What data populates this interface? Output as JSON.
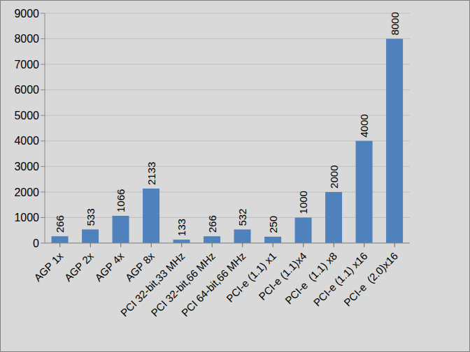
{
  "chart_data": {
    "type": "bar",
    "categories": [
      "AGP 1x",
      "AGP 2x",
      "AGP 4x",
      "AGP 8x",
      "PCI 32-bit,33 MHz",
      "PCI 32-bit,66 MHz",
      "PCI 64-bit,66 MHz",
      "PCI-e (1.1) x1",
      "PCI-e (1.1)x4",
      "PCI-e  (1.1) x8",
      "PCI-e (1.1) x16",
      "PCI-e  (2.0)x16"
    ],
    "values": [
      266,
      533,
      1066,
      2133,
      133,
      266,
      532,
      250,
      1000,
      2000,
      4000,
      8000
    ],
    "color": "#4f81bd",
    "ylim": [
      0,
      9000
    ],
    "yticks": [
      0,
      1000,
      2000,
      3000,
      4000,
      5000,
      6000,
      7000,
      8000,
      9000
    ],
    "grid": true,
    "data_labels": true
  }
}
